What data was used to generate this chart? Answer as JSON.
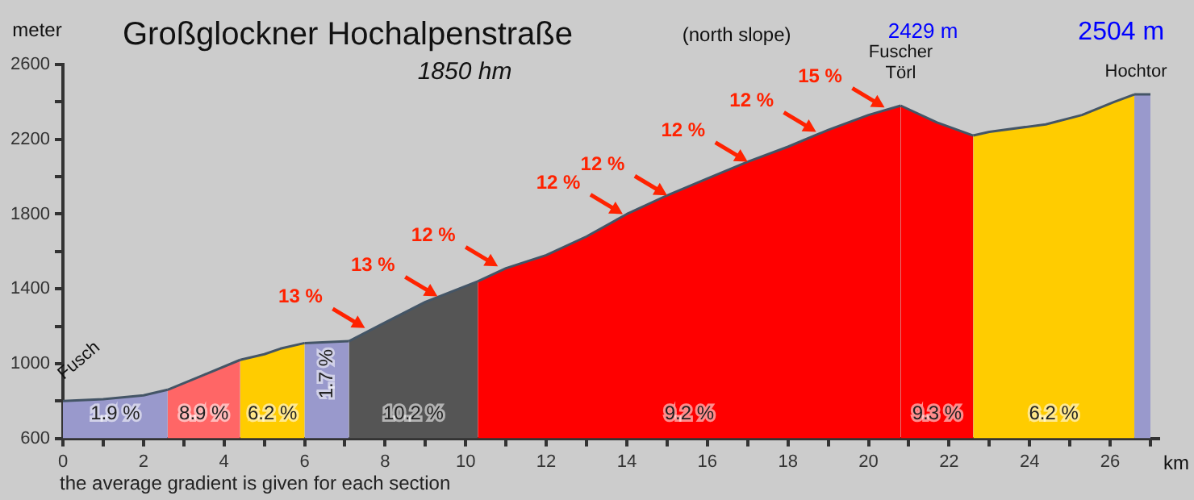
{
  "chart_data": {
    "type": "area",
    "title": "Großglockner Hochalpenstraße",
    "subtitle": "1850 hm",
    "xlabel": "km",
    "ylabel": "meter",
    "series": [
      {
        "color": "#9999cc",
        "x": [
          0,
          1,
          2,
          2.6
        ],
        "values": [
          800,
          810,
          830,
          860
        ]
      },
      {
        "color": "#ff6666",
        "x": [
          2.6,
          3.5,
          4.4
        ],
        "values": [
          860,
          940,
          1020
        ]
      },
      {
        "color": "#ffcc00",
        "x": [
          4.4,
          5,
          5.4,
          6
        ],
        "values": [
          1020,
          1050,
          1080,
          1110
        ]
      },
      {
        "color": "#9999cc",
        "x": [
          6,
          7.1
        ],
        "values": [
          1110,
          1120
        ]
      },
      {
        "color": "#555555",
        "x": [
          7.1,
          8,
          9,
          10.3
        ],
        "values": [
          1120,
          1220,
          1330,
          1440
        ]
      },
      {
        "color": "#ff0000",
        "x": [
          10.3,
          11,
          12,
          13,
          14,
          15,
          16,
          17,
          18,
          19,
          20,
          20.8
        ],
        "values": [
          1440,
          1510,
          1580,
          1680,
          1800,
          1900,
          1990,
          2080,
          2160,
          2250,
          2330,
          2380
        ]
      },
      {
        "color": "#ff0000",
        "x": [
          20.8,
          21.7,
          22.6
        ],
        "values": [
          2380,
          2290,
          2220
        ]
      },
      {
        "color": "#ffcc00",
        "x": [
          22.6,
          23,
          24.4,
          25.3,
          26.1,
          26.6
        ],
        "values": [
          2220,
          2240,
          2280,
          2330,
          2400,
          2440
        ]
      },
      {
        "color": "#9999cc",
        "x": [
          26.6,
          27
        ],
        "values": [
          2440,
          2440
        ]
      }
    ],
    "xlim": [
      0,
      27.2
    ],
    "xticks": [
      0,
      {
        "value": 1,
        "label": null
      },
      2,
      {
        "value": 3,
        "label": null
      },
      4,
      {
        "value": 5,
        "label": null
      },
      6,
      {
        "value": 7,
        "label": null
      },
      8,
      {
        "value": 9,
        "label": null
      },
      10,
      {
        "value": 11,
        "label": null
      },
      12,
      {
        "value": 13,
        "label": null
      },
      14,
      {
        "value": 15,
        "label": null
      },
      16,
      {
        "value": 17,
        "label": null
      },
      18,
      {
        "value": 19,
        "label": null
      },
      20,
      {
        "value": 21,
        "label": null
      },
      22,
      {
        "value": 23,
        "label": null
      },
      24,
      {
        "value": 25,
        "label": null
      },
      26,
      {
        "value": 27,
        "label": null
      }
    ],
    "ylim": [
      600,
      2600
    ],
    "yticks": [
      600,
      {
        "value": 800,
        "label": null
      },
      1000,
      {
        "value": 1200,
        "label": null
      },
      1400,
      {
        "value": 1600,
        "label": null
      },
      1800,
      {
        "value": 2000,
        "label": null
      },
      2200,
      {
        "value": 2400,
        "label": null
      },
      2600
    ],
    "grid": false,
    "legend": false,
    "annotations": [
      "(north slope)",
      "the average gradient is given for each section",
      "2429 m",
      "2504 m",
      "1.9 %",
      "8.9 %",
      "6.2 %",
      "1.7 %",
      "10.2 %",
      "9.2 %",
      "9.3 %",
      "6.2 %",
      {
        "text": "Fusch",
        "x": 0,
        "y": 800
      },
      {
        "text": "Fuscher Törl",
        "x": 20.8,
        "y": 2380
      },
      {
        "text": "Hochtor",
        "x": 26.8,
        "y": 2440
      },
      {
        "text": "13 %",
        "x": 7.5,
        "y": 1190
      },
      {
        "text": "13 %",
        "x": 9.3,
        "y": 1360
      },
      {
        "text": "12 %",
        "x": 10.8,
        "y": 1520
      },
      {
        "text": "12 %",
        "x": 13.9,
        "y": 1800
      },
      {
        "text": "12 %",
        "x": 15,
        "y": 1900
      },
      {
        "text": "12 %",
        "x": 17,
        "y": 2080
      },
      {
        "text": "12 %",
        "x": 18.7,
        "y": 2240
      },
      {
        "text": "15 %",
        "x": 20.4,
        "y": 2370
      }
    ]
  }
}
